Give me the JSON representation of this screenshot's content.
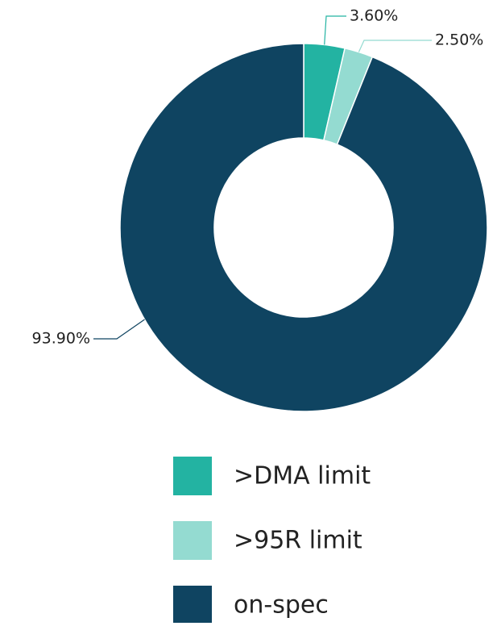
{
  "chart_data": {
    "type": "donut",
    "categories": [
      ">DMA limit",
      ">95R limit",
      "on-spec"
    ],
    "values": [
      3.6,
      2.5,
      93.9
    ],
    "value_labels": [
      "3.60%",
      "2.50%",
      "93.90%"
    ],
    "colors": [
      "#23b3a2",
      "#94dbd1",
      "#0f4461"
    ]
  }
}
